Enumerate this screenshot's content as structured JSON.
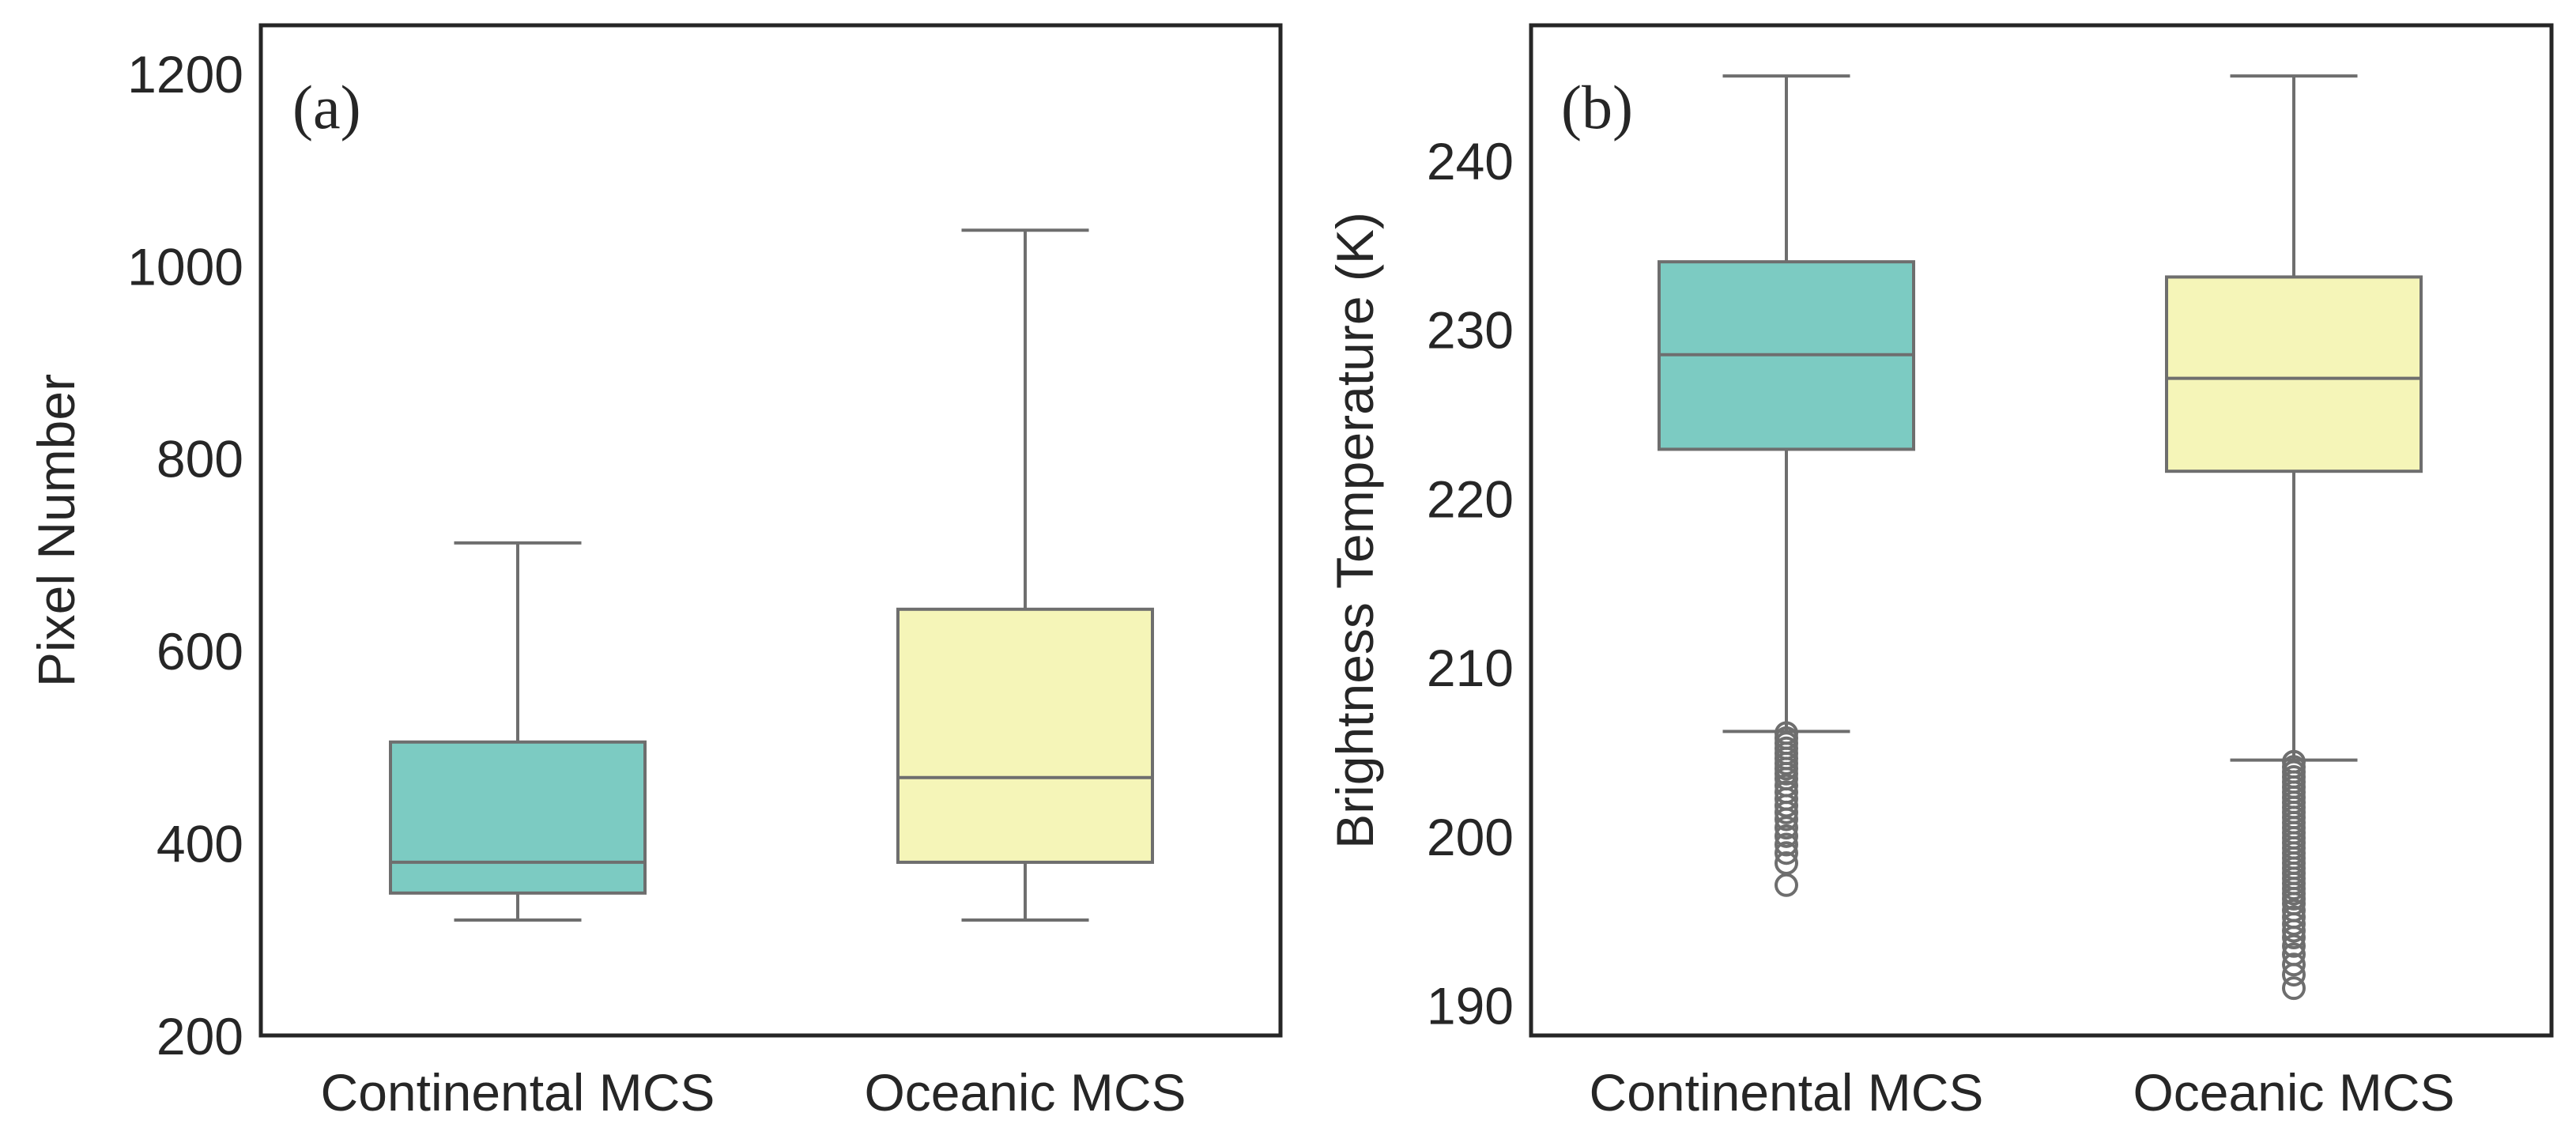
{
  "chart_data": [
    {
      "type": "boxplot",
      "panel_label": "(a)",
      "title": "",
      "xlabel": "",
      "ylabel": "Pixel Number",
      "categories": [
        "Continental MCS",
        "Oceanic MCS"
      ],
      "ylim": [
        200,
        1250
      ],
      "yticks": [
        200,
        400,
        600,
        800,
        1000,
        1200
      ],
      "grid": false,
      "boxes": [
        {
          "name": "Continental MCS",
          "whislo": 320,
          "q1": 348,
          "med": 380,
          "q3": 505,
          "whishi": 712,
          "fliers": [],
          "color": "#7ccbc2"
        },
        {
          "name": "Oceanic MCS",
          "whislo": 320,
          "q1": 380,
          "med": 468,
          "q3": 643,
          "whishi": 1037,
          "fliers": [],
          "color": "#f5f5b8"
        }
      ]
    },
    {
      "type": "boxplot",
      "panel_label": "(b)",
      "title": "",
      "xlabel": "",
      "ylabel": "Brightness Temperature (K)",
      "categories": [
        "Continental MCS",
        "Oceanic MCS"
      ],
      "ylim": [
        188.2,
        248
      ],
      "yticks": [
        190,
        200,
        210,
        220,
        230,
        240
      ],
      "grid": false,
      "boxes": [
        {
          "name": "Continental MCS",
          "whislo": 206.2,
          "q1": 222.9,
          "med": 228.5,
          "q3": 234.0,
          "whishi": 245.0,
          "fliers": [
            206.1,
            205.8,
            205.5,
            205.2,
            204.9,
            204.6,
            204.3,
            204.0,
            203.7,
            203.4,
            203.0,
            202.6,
            202.2,
            201.8,
            201.4,
            201.0,
            200.5,
            200.0,
            199.5,
            199.0,
            198.4,
            197.1
          ],
          "color": "#7ccbc2"
        },
        {
          "name": "Oceanic MCS",
          "whislo": 204.5,
          "q1": 221.6,
          "med": 227.1,
          "q3": 233.1,
          "whishi": 245.0,
          "fliers": [
            204.4,
            204.1,
            203.8,
            203.5,
            203.2,
            202.9,
            202.6,
            202.3,
            202.0,
            201.7,
            201.4,
            201.1,
            200.8,
            200.5,
            200.2,
            199.9,
            199.6,
            199.3,
            199.0,
            198.7,
            198.4,
            198.1,
            197.8,
            197.5,
            197.2,
            196.9,
            196.6,
            196.3,
            196.0,
            195.6,
            195.2,
            194.8,
            194.4,
            194.0,
            193.5,
            193.0,
            192.4,
            191.8,
            191.0
          ],
          "color": "#f5f5b8"
        }
      ]
    }
  ]
}
